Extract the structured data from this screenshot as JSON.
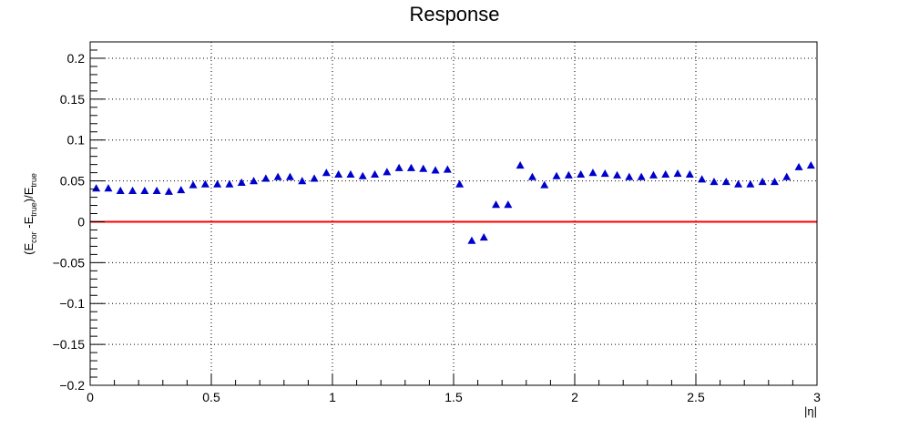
{
  "chart_data": {
    "type": "scatter",
    "title": "Response",
    "xlabel": "|η|",
    "ylabel": {
      "p1": "(E",
      "s1": "cor",
      "p2": " -E",
      "s2": "true",
      "p3": ")/E",
      "s3": "true"
    },
    "xlim": [
      0,
      3
    ],
    "ylim": [
      -0.2,
      0.22
    ],
    "x_ticks": [
      0,
      0.5,
      1,
      1.5,
      2,
      2.5,
      3
    ],
    "x_tick_labels": [
      "0",
      "0.5",
      "1",
      "1.5",
      "2",
      "2.5",
      "3"
    ],
    "y_ticks": [
      -0.2,
      -0.15,
      -0.1,
      -0.05,
      0,
      0.05,
      0.1,
      0.15,
      0.2
    ],
    "y_tick_labels": [
      "−0.2",
      "−0.15",
      "−0.1",
      "−0.05",
      "0",
      "0.05",
      "0.1",
      "0.15",
      "0.2"
    ],
    "grid": true,
    "marker_color": "#0000cc",
    "reference_line": {
      "y": 0,
      "color": "#ff0000"
    },
    "series": [
      {
        "x": [
          0.025,
          0.075,
          0.125,
          0.175,
          0.225,
          0.275,
          0.325,
          0.375,
          0.425,
          0.475,
          0.525,
          0.575,
          0.625,
          0.675,
          0.725,
          0.775,
          0.825,
          0.875,
          0.925,
          0.975,
          1.025,
          1.075,
          1.125,
          1.175,
          1.225,
          1.275,
          1.325,
          1.375,
          1.425,
          1.475,
          1.525,
          1.575,
          1.625,
          1.675,
          1.725,
          1.775,
          1.825,
          1.875,
          1.925,
          1.975,
          2.025,
          2.075,
          2.125,
          2.175,
          2.225,
          2.275,
          2.325,
          2.375,
          2.425,
          2.475,
          2.525,
          2.575,
          2.625,
          2.675,
          2.725,
          2.775,
          2.825,
          2.875,
          2.925,
          2.975
        ],
        "y": [
          0.041,
          0.041,
          0.038,
          0.038,
          0.038,
          0.038,
          0.037,
          0.039,
          0.045,
          0.046,
          0.046,
          0.046,
          0.048,
          0.05,
          0.053,
          0.055,
          0.055,
          0.05,
          0.053,
          0.06,
          0.058,
          0.058,
          0.056,
          0.058,
          0.061,
          0.066,
          0.066,
          0.065,
          0.063,
          0.064,
          0.046,
          -0.023,
          -0.019,
          0.021,
          0.021,
          0.069,
          0.055,
          0.045,
          0.056,
          0.057,
          0.058,
          0.06,
          0.059,
          0.057,
          0.055,
          0.055,
          0.057,
          0.058,
          0.059,
          0.058,
          0.052,
          0.049,
          0.049,
          0.046,
          0.046,
          0.049,
          0.049,
          0.055,
          0.067,
          0.069
        ]
      }
    ]
  }
}
